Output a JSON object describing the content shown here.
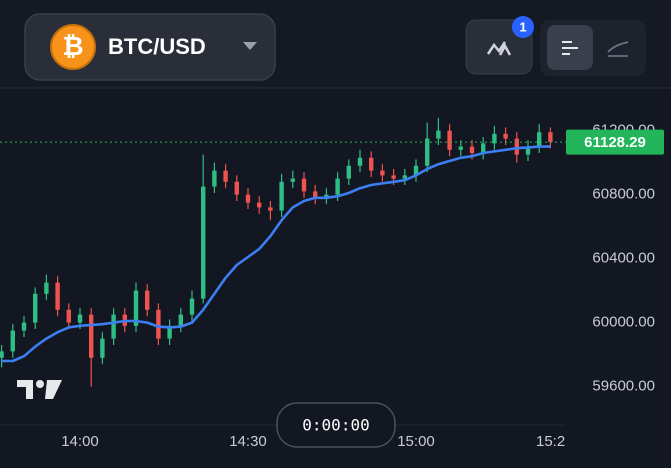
{
  "header": {
    "symbol": "BTC/USD",
    "icon": "₿",
    "badge": "1"
  },
  "timer": "0:00:00",
  "chart_data": {
    "type": "candlestick",
    "x": [
      "13:46",
      "13:48",
      "13:50",
      "13:52",
      "13:54",
      "13:56",
      "13:58",
      "14:00",
      "14:02",
      "14:04",
      "14:06",
      "14:08",
      "14:10",
      "14:12",
      "14:14",
      "14:16",
      "14:18",
      "14:20",
      "14:22",
      "14:24",
      "14:26",
      "14:28",
      "14:30",
      "14:32",
      "14:34",
      "14:36",
      "14:38",
      "14:40",
      "14:42",
      "14:44",
      "14:46",
      "14:48",
      "14:50",
      "14:52",
      "14:54",
      "14:56",
      "14:58",
      "15:00",
      "15:02",
      "15:04",
      "15:06",
      "15:08",
      "15:10",
      "15:12",
      "15:14",
      "15:16",
      "15:18",
      "15:20",
      "15:22",
      "15:24"
    ],
    "open": [
      59780,
      59820,
      59950,
      60000,
      60180,
      60250,
      60080,
      60000,
      60050,
      59780,
      59900,
      60050,
      59980,
      60200,
      60080,
      59900,
      59980,
      60050,
      60150,
      60850,
      60950,
      60880,
      60800,
      60750,
      60720,
      60700,
      60880,
      60900,
      60820,
      60780,
      60800,
      60900,
      60980,
      61030,
      60950,
      60920,
      60900,
      60920,
      60980,
      61150,
      61200,
      61080,
      61100,
      61060,
      61120,
      61180,
      61150,
      61050,
      61100,
      61190
    ],
    "high": [
      59860,
      59990,
      60040,
      60220,
      60300,
      60290,
      60120,
      60090,
      60090,
      59940,
      60090,
      60090,
      60250,
      60240,
      60120,
      60020,
      60090,
      60200,
      61050,
      61000,
      60990,
      60920,
      60840,
      60790,
      60760,
      60930,
      60950,
      60940,
      60860,
      60840,
      60940,
      61020,
      61080,
      61070,
      60990,
      60960,
      60960,
      61020,
      61250,
      61280,
      61240,
      61140,
      61140,
      61160,
      61230,
      61220,
      61190,
      61140,
      61240,
      61220
    ],
    "low": [
      59720,
      59780,
      59910,
      59960,
      60140,
      60040,
      59960,
      59960,
      59600,
      59740,
      59860,
      59940,
      59940,
      60040,
      59860,
      59860,
      59940,
      60010,
      60120,
      60810,
      60840,
      60760,
      60710,
      60680,
      60640,
      60660,
      60840,
      60780,
      60740,
      60740,
      60760,
      60860,
      60940,
      60910,
      60880,
      60860,
      60860,
      60880,
      60940,
      61110,
      61040,
      61040,
      61020,
      61020,
      61080,
      61110,
      61000,
      61010,
      61060,
      61090
    ],
    "close": [
      59820,
      59950,
      60000,
      60180,
      60250,
      60080,
      60000,
      60050,
      59780,
      59900,
      60050,
      59980,
      60200,
      60080,
      59900,
      59980,
      60050,
      60150,
      60850,
      60950,
      60880,
      60800,
      60750,
      60720,
      60700,
      60880,
      60900,
      60820,
      60780,
      60800,
      60900,
      60980,
      61030,
      60950,
      60920,
      60900,
      60920,
      60980,
      61150,
      61200,
      61080,
      61100,
      61060,
      61120,
      61180,
      61150,
      61050,
      61100,
      61190,
      61128.29
    ],
    "up_color": "#2ebd85",
    "down_color": "#ef5350",
    "ma": {
      "color": "#3b7ff2",
      "values": [
        59760,
        59760,
        59790,
        59850,
        59900,
        59940,
        59970,
        59980,
        59985,
        59990,
        60000,
        60010,
        60010,
        60000,
        59975,
        59970,
        59975,
        60000,
        60080,
        60180,
        60280,
        60360,
        60410,
        60460,
        60540,
        60640,
        60720,
        60760,
        60780,
        60780,
        60790,
        60810,
        60840,
        60860,
        60870,
        60880,
        60890,
        60920,
        60960,
        60990,
        61010,
        61030,
        61040,
        61060,
        61070,
        61080,
        61090,
        61095,
        61100,
        61100
      ]
    },
    "last_price": 61128.29,
    "last_price_color": "#22b55a",
    "xlim": [
      "13:46",
      "15:27"
    ],
    "xticks": [
      "14:00",
      "14:30",
      "15:00",
      {
        "value": "15:25",
        "label": "15:2"
      }
    ],
    "ylim": [
      59360,
      61460
    ],
    "yticks": [
      {
        "value": 61200,
        "label": "61200.00"
      },
      {
        "value": 60800,
        "label": "60800.00"
      },
      {
        "value": 60400,
        "label": "60400.00"
      },
      {
        "value": 60000,
        "label": "60000.00"
      },
      {
        "value": 59600,
        "label": "59600.00"
      }
    ],
    "grid": false
  }
}
